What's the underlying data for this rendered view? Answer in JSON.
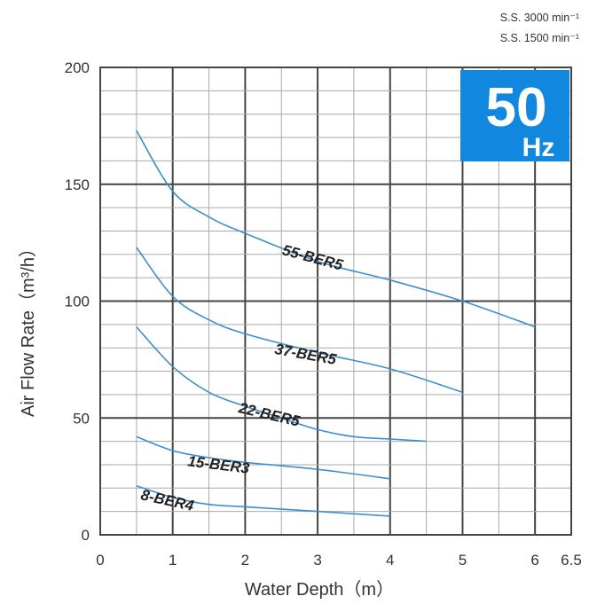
{
  "chart_data": {
    "type": "line",
    "xlabel": "Water Depth（m）",
    "ylabel": "Air Flow Rate（m³/h）",
    "xlim": [
      0,
      6.5
    ],
    "ylim": [
      0,
      200
    ],
    "x_ticks": [
      "0",
      "1",
      "2",
      "3",
      "4",
      "5",
      "6",
      "6.5"
    ],
    "y_ticks": [
      "0",
      "50",
      "100",
      "150",
      "200"
    ],
    "grid": true,
    "line_color": "#3d8fd0",
    "badge": {
      "main": "50",
      "sub": "Hz",
      "color": "#1187e0"
    },
    "notes": [
      "S.S. 3000 min⁻¹",
      "S.S. 1500 min⁻¹"
    ],
    "series": [
      {
        "name": "55-BER5",
        "x": [
          0.5,
          1,
          1.5,
          2,
          3,
          4,
          5,
          6
        ],
        "y": [
          173,
          147,
          136,
          129,
          117,
          109,
          100,
          89
        ]
      },
      {
        "name": "37-BER5",
        "x": [
          0.5,
          1,
          1.5,
          2,
          3,
          4,
          5
        ],
        "y": [
          123,
          102,
          92,
          86,
          78,
          71,
          61
        ]
      },
      {
        "name": "22-BER5",
        "x": [
          0.5,
          1,
          1.5,
          2,
          2.5,
          3,
          3.5,
          4,
          4.5
        ],
        "y": [
          89,
          72,
          61,
          55,
          50,
          45,
          42,
          41,
          40
        ]
      },
      {
        "name": "15-BER3",
        "x": [
          0.5,
          1,
          1.5,
          2,
          3,
          4
        ],
        "y": [
          42,
          36,
          33,
          31,
          28,
          24
        ]
      },
      {
        "name": "8-BER4",
        "x": [
          0.5,
          1,
          1.5,
          2,
          3,
          4
        ],
        "y": [
          21,
          16,
          13,
          12,
          10,
          8
        ]
      }
    ]
  }
}
